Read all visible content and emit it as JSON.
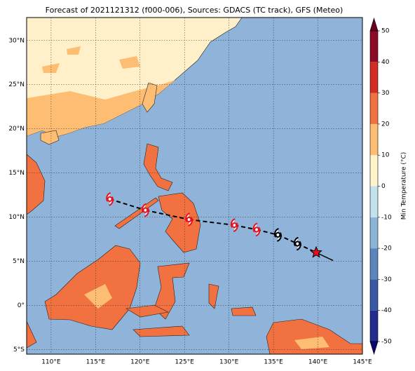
{
  "chart_data": {
    "type": "map",
    "title": "Forecast of 2021121312 (f000-006), Sources: GDACS (TC track), GFS (Meteo)",
    "xlim": [
      107.25,
      145
    ],
    "ylim": [
      -5.5,
      32.6
    ],
    "xticks": [
      {
        "value": 110,
        "label": "110°E"
      },
      {
        "value": 115,
        "label": "115°E"
      },
      {
        "value": 120,
        "label": "120°E"
      },
      {
        "value": 125,
        "label": "125°E"
      },
      {
        "value": 130,
        "label": "130°E"
      },
      {
        "value": 135,
        "label": "135°E"
      },
      {
        "value": 140,
        "label": "140°E"
      },
      {
        "value": 145,
        "label": "145°E"
      }
    ],
    "yticks": [
      {
        "value": 30,
        "label": "30°N"
      },
      {
        "value": 25,
        "label": "25°N"
      },
      {
        "value": 20,
        "label": "20°N"
      },
      {
        "value": 15,
        "label": "15°N"
      },
      {
        "value": 10,
        "label": "10°N"
      },
      {
        "value": 5,
        "label": "5°N"
      },
      {
        "value": 0,
        "label": "0°"
      },
      {
        "value": -5,
        "label": "5°S"
      }
    ],
    "grid": true,
    "series": [
      {
        "color": "#e8101c",
        "x": [
          116.6,
          120.6,
          125.5,
          130.6,
          133.1
        ],
        "y": [
          12.05,
          10.8,
          9.74,
          9.1,
          8.6
        ]
      },
      {
        "color": "#000000",
        "x": [
          135.5,
          137.7
        ],
        "y": [
          8.0,
          7.0
        ]
      }
    ],
    "current": {
      "color": "#e8101c",
      "x": 139.8,
      "y": 6.0
    },
    "tail": {
      "x": [
        139.8,
        141.7
      ],
      "y": [
        6.0,
        5.1
      ]
    },
    "colorbar": {
      "label": "Min Temperature (°C)",
      "ticks": [
        -50,
        -40,
        -30,
        -20,
        -10,
        0,
        10,
        20,
        30,
        40,
        50
      ],
      "colors": [
        "#222c8e",
        "#3858a6",
        "#5a86bd",
        "#8bb4d6",
        "#c3e2ee",
        "#fff3c9",
        "#fdbd72",
        "#f27140",
        "#d42c25",
        "#8c0a26"
      ],
      "under": "#0a0a6e",
      "over": "#6b0021"
    }
  }
}
